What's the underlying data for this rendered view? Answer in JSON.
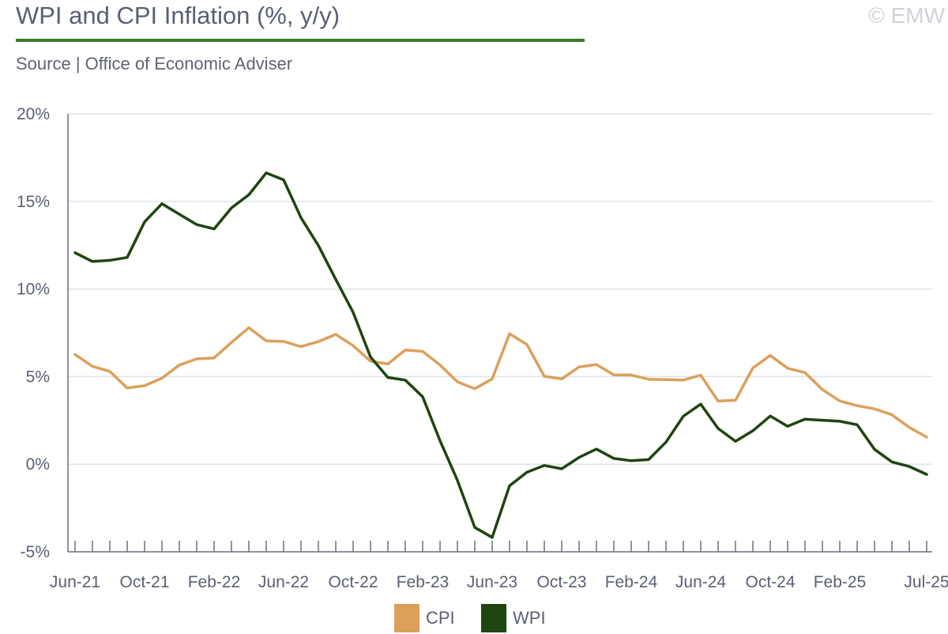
{
  "header": {
    "title": "WPI and CPI Inflation (%, y/y)",
    "source": "Source | Office of Economic Adviser",
    "copyright": "© EMW"
  },
  "colors": {
    "title_rule": "#3b7a2a",
    "cpi": "#dba05a",
    "wpi": "#1f4510",
    "grid": "#dce3ea",
    "axis": "#6a6f7e"
  },
  "chart_data": {
    "type": "line",
    "title": "WPI and CPI Inflation (%, y/y)",
    "x": [
      "Jun-21",
      "Jul-21",
      "Aug-21",
      "Sep-21",
      "Oct-21",
      "Nov-21",
      "Dec-21",
      "Jan-22",
      "Feb-22",
      "Mar-22",
      "Apr-22",
      "May-22",
      "Jun-22",
      "Jul-22",
      "Aug-22",
      "Sep-22",
      "Oct-22",
      "Nov-22",
      "Dec-22",
      "Jan-23",
      "Feb-23",
      "Mar-23",
      "Apr-23",
      "May-23",
      "Jun-23",
      "Jul-23",
      "Aug-23",
      "Sep-23",
      "Oct-23",
      "Nov-23",
      "Dec-23",
      "Jan-24",
      "Feb-24",
      "Mar-24",
      "Apr-24",
      "May-24",
      "Jun-24",
      "Jul-24",
      "Aug-24",
      "Sep-24",
      "Oct-24",
      "Nov-24",
      "Dec-24",
      "Jan-25",
      "Feb-25",
      "Mar-25",
      "Apr-25",
      "May-25",
      "Jun-25",
      "Jul-25"
    ],
    "x_tick_labels": [
      "Jun-21",
      "Oct-21",
      "Feb-22",
      "Jun-22",
      "Oct-22",
      "Feb-23",
      "Jun-23",
      "Oct-23",
      "Feb-24",
      "Jun-24",
      "Oct-24",
      "Feb-25",
      "Jul-25"
    ],
    "y_tick_labels": [
      "20%",
      "15%",
      "10%",
      "5%",
      "0%",
      "-5%"
    ],
    "ylim": [
      -5,
      20
    ],
    "y_ticks": [
      -5,
      0,
      5,
      10,
      15,
      20
    ],
    "grid": true,
    "legend_position": "bottom-center",
    "series": [
      {
        "name": "CPI",
        "values": [
          6.26,
          5.59,
          5.3,
          4.35,
          4.48,
          4.91,
          5.66,
          6.01,
          6.07,
          6.95,
          7.79,
          7.04,
          7.01,
          6.71,
          7.0,
          7.41,
          6.77,
          5.88,
          5.72,
          6.52,
          6.44,
          5.66,
          4.7,
          4.31,
          4.87,
          7.44,
          6.83,
          5.02,
          4.87,
          5.55,
          5.69,
          5.1,
          5.09,
          4.85,
          4.83,
          4.8,
          5.08,
          3.6,
          3.65,
          5.49,
          6.21,
          5.48,
          5.22,
          4.26,
          3.61,
          3.34,
          3.16,
          2.82,
          2.1,
          1.55
        ]
      },
      {
        "name": "WPI",
        "values": [
          12.07,
          11.57,
          11.64,
          11.8,
          13.83,
          14.87,
          14.27,
          13.68,
          13.43,
          14.63,
          15.38,
          16.63,
          16.23,
          14.07,
          12.48,
          10.55,
          8.67,
          6.12,
          4.95,
          4.8,
          3.85,
          1.34,
          -0.92,
          -3.61,
          -4.18,
          -1.23,
          -0.46,
          -0.07,
          -0.26,
          0.39,
          0.86,
          0.33,
          0.2,
          0.26,
          1.26,
          2.74,
          3.43,
          2.04,
          1.31,
          1.91,
          2.75,
          2.16,
          2.57,
          2.51,
          2.45,
          2.25,
          0.85,
          0.13,
          -0.13,
          -0.58
        ]
      }
    ]
  },
  "legend": {
    "items": [
      {
        "label": "CPI"
      },
      {
        "label": "WPI"
      }
    ]
  }
}
